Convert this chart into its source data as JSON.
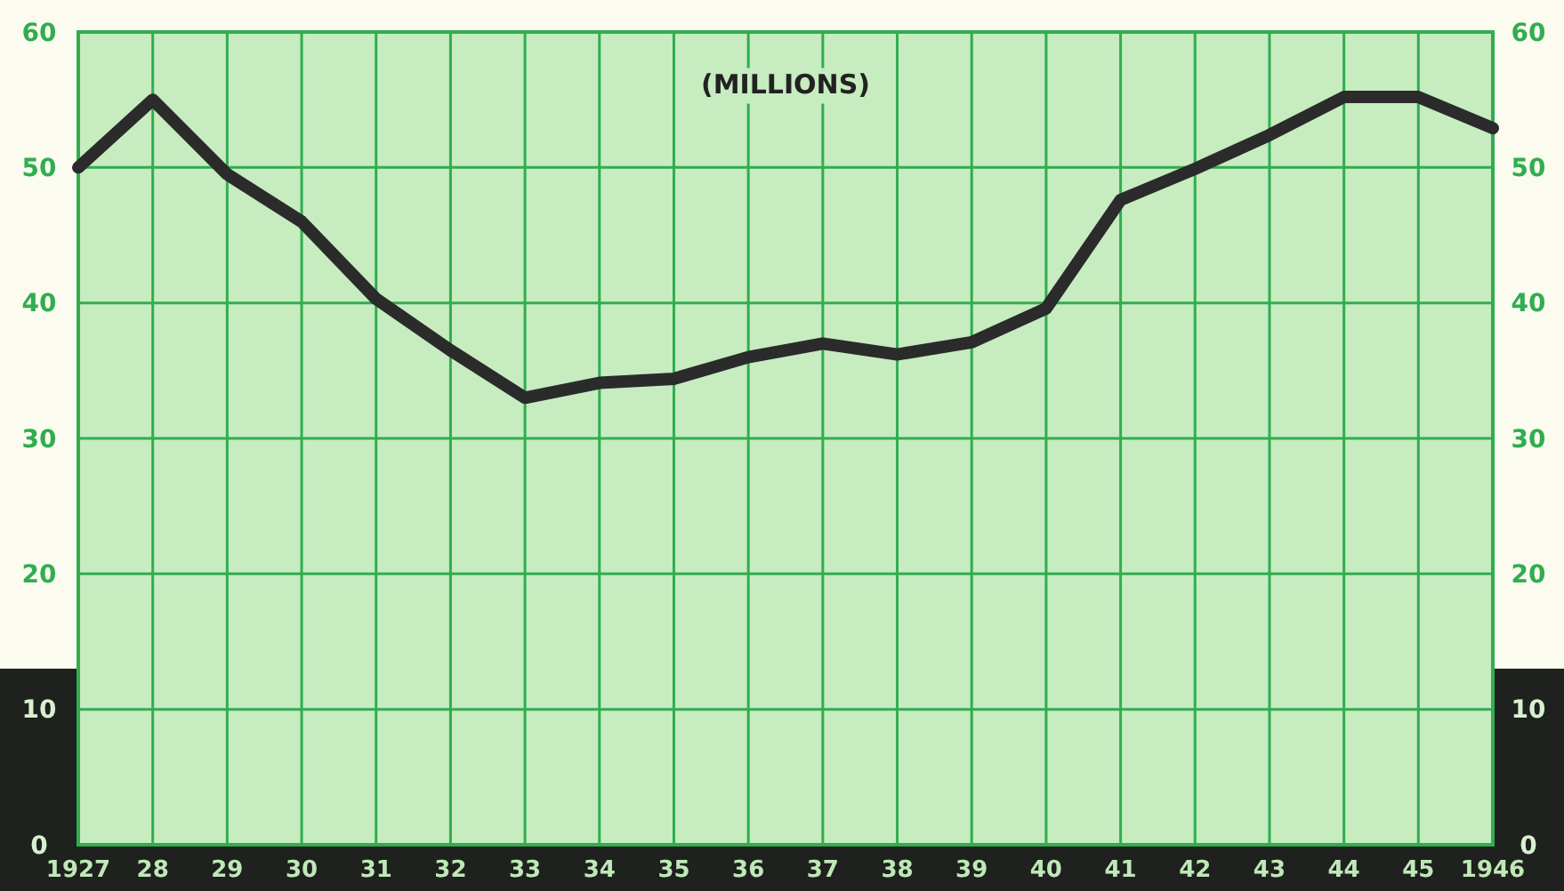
{
  "chart_data": {
    "type": "line",
    "annotations": [
      "(MILLIONS)"
    ],
    "x": [
      1927,
      1928,
      1929,
      1930,
      1931,
      1932,
      1933,
      1934,
      1935,
      1936,
      1937,
      1938,
      1939,
      1940,
      1941,
      1942,
      1943,
      1944,
      1945,
      1946
    ],
    "series": [
      {
        "color": "#2b2b2b",
        "values": [
          50,
          55,
          49.5,
          46,
          40.3,
          36.5,
          33,
          34.1,
          34.4,
          36,
          37,
          36.2,
          37.1,
          39.6,
          47.6,
          49.9,
          52.4,
          55.2,
          55.2,
          52.9
        ]
      }
    ],
    "xlim": [
      1927,
      1946
    ],
    "xticks": [
      1927,
      {
        "value": 1928,
        "label": "28"
      },
      {
        "value": 1929,
        "label": "29"
      },
      {
        "value": 1930,
        "label": "30"
      },
      {
        "value": 1931,
        "label": "31"
      },
      {
        "value": 1932,
        "label": "32"
      },
      {
        "value": 1933,
        "label": "33"
      },
      {
        "value": 1934,
        "label": "34"
      },
      {
        "value": 1935,
        "label": "35"
      },
      {
        "value": 1936,
        "label": "36"
      },
      {
        "value": 1937,
        "label": "37"
      },
      {
        "value": 1938,
        "label": "38"
      },
      {
        "value": 1939,
        "label": "39"
      },
      {
        "value": 1940,
        "label": "40"
      },
      {
        "value": 1941,
        "label": "41"
      },
      {
        "value": 1942,
        "label": "42"
      },
      {
        "value": 1943,
        "label": "43"
      },
      {
        "value": 1944,
        "label": "44"
      },
      {
        "value": 1945,
        "label": "45"
      },
      1946
    ],
    "ylim": [
      0,
      60
    ],
    "yticks": [
      0,
      10,
      20,
      30,
      40,
      50,
      60
    ],
    "y2lim": [
      0,
      60
    ],
    "y2ticks": [
      0,
      10,
      20,
      30,
      40,
      50,
      60
    ],
    "grid": true,
    "marker": "none",
    "line_style": "solid"
  }
}
